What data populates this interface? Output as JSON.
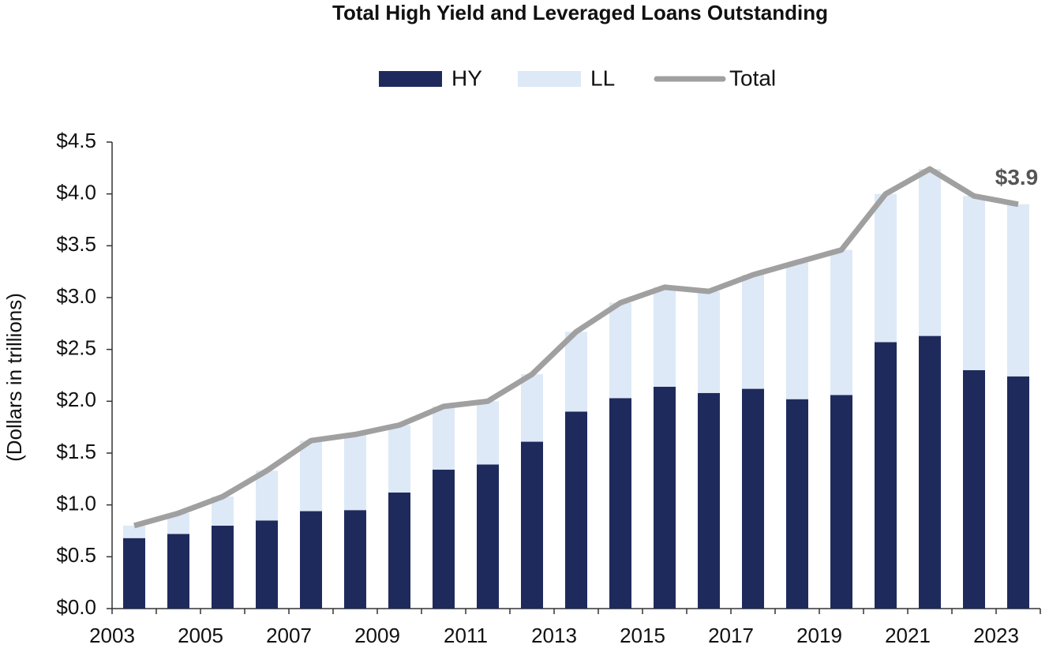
{
  "chart_data": {
    "type": "bar",
    "stacked": true,
    "title": "Total High Yield and Leveraged Loans Outstanding",
    "y_label": "(Dollars in trillions)",
    "categories": [
      "2003",
      null,
      "2005",
      null,
      "2007",
      null,
      "2009",
      null,
      "2011",
      null,
      "2013",
      null,
      "2015",
      null,
      "2017",
      null,
      "2019",
      null,
      "2021",
      null,
      "2023"
    ],
    "series": [
      {
        "name": "HY",
        "type": "bar",
        "color": "#1f2a5c",
        "values": [
          0.68,
          0.72,
          0.8,
          0.85,
          0.94,
          0.95,
          1.12,
          1.34,
          1.39,
          1.61,
          1.9,
          2.03,
          2.14,
          2.08,
          2.12,
          2.02,
          2.06,
          2.57,
          2.63,
          2.3,
          2.24
        ]
      },
      {
        "name": "LL",
        "type": "bar",
        "color": "#dde9f6",
        "values": [
          0.12,
          0.2,
          0.28,
          0.48,
          0.68,
          0.73,
          0.65,
          0.61,
          0.61,
          0.65,
          0.77,
          0.92,
          0.96,
          0.98,
          1.1,
          1.32,
          1.4,
          1.43,
          1.61,
          1.68,
          1.66
        ]
      },
      {
        "name": "Total",
        "type": "line",
        "color": "#a0a0a0",
        "values": [
          0.8,
          0.92,
          1.08,
          1.33,
          1.62,
          1.68,
          1.77,
          1.95,
          2.0,
          2.26,
          2.67,
          2.95,
          3.1,
          3.06,
          3.22,
          3.34,
          3.46,
          4.0,
          4.24,
          3.98,
          3.9
        ],
        "value_labels": [
          null,
          null,
          null,
          null,
          null,
          null,
          null,
          null,
          null,
          null,
          null,
          null,
          null,
          null,
          null,
          null,
          null,
          null,
          null,
          null,
          "$3.9"
        ]
      }
    ],
    "ylim": [
      0,
      4.5
    ],
    "yticks": [
      {
        "value": 0,
        "label": "$0.0"
      },
      {
        "value": 0.5,
        "label": "$0.5"
      },
      {
        "value": 1,
        "label": "$1.0"
      },
      {
        "value": 1.5,
        "label": "$1.5"
      },
      {
        "value": 2,
        "label": "$2.0"
      },
      {
        "value": 2.5,
        "label": "$2.5"
      },
      {
        "value": 3,
        "label": "$3.0"
      },
      {
        "value": 3.5,
        "label": "$3.5"
      },
      {
        "value": 4,
        "label": "$4.0"
      },
      {
        "value": 4.5,
        "label": "$4.5"
      }
    ],
    "legend": "top",
    "grid": false
  }
}
